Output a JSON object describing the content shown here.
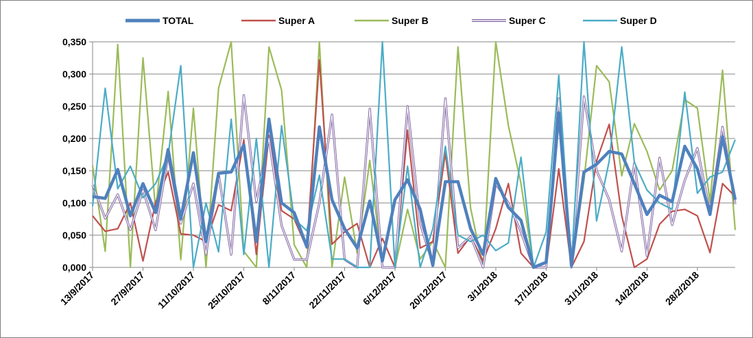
{
  "chart_data": {
    "type": "line",
    "title": "",
    "xlabel": "",
    "ylabel": "",
    "ylim": [
      0,
      0.35
    ],
    "y_ticks": [
      "0,000",
      "0,050",
      "0,100",
      "0,150",
      "0,200",
      "0,250",
      "0,300",
      "0,350"
    ],
    "x_ticks": [
      "13/9/2017",
      "27/9/2017",
      "11/10/2017",
      "25/10/2017",
      "8/11/2017",
      "22/11/2017",
      "6/12/2017",
      "20/12/2017",
      "3/1/2018",
      "17/1/2018",
      "31/1/2018",
      "14/2/2018",
      "28/2/2018"
    ],
    "grid": "horizontal",
    "legend_position": "top",
    "series": [
      {
        "name": "TOTAL",
        "color": "#4f81bd",
        "style": "thick",
        "values": [
          0.11,
          0.107,
          0.152,
          0.08,
          0.13,
          0.085,
          0.183,
          0.075,
          0.178,
          0.04,
          0.146,
          0.148,
          0.19,
          0.04,
          0.23,
          0.1,
          0.085,
          0.032,
          0.218,
          0.105,
          0.06,
          0.03,
          0.103,
          0.01,
          0.105,
          0.136,
          0.09,
          0.003,
          0.133,
          0.133,
          0.06,
          0.02,
          0.138,
          0.093,
          0.073,
          0.0,
          0.008,
          0.24,
          0.003,
          0.148,
          0.16,
          0.18,
          0.176,
          0.13,
          0.082,
          0.112,
          0.102,
          0.188,
          0.153,
          0.082,
          0.203,
          0.105
        ]
      },
      {
        "name": "Super A",
        "color": "#c0504d",
        "style": "normal",
        "values": [
          0.08,
          0.056,
          0.06,
          0.1,
          0.01,
          0.101,
          0.148,
          0.052,
          0.05,
          0.04,
          0.097,
          0.088,
          0.198,
          0.02,
          0.205,
          0.088,
          0.075,
          0.03,
          0.322,
          0.036,
          0.055,
          0.068,
          0.0,
          0.045,
          0.0,
          0.213,
          0.03,
          0.04,
          0.178,
          0.022,
          0.048,
          0.01,
          0.06,
          0.13,
          0.022,
          0.0,
          0.0,
          0.153,
          0.0,
          0.04,
          0.165,
          0.222,
          0.08,
          0.0,
          0.013,
          0.067,
          0.087,
          0.09,
          0.08,
          0.023,
          0.13,
          0.11
        ]
      },
      {
        "name": "Super B",
        "color": "#9bbb59",
        "style": "normal",
        "values": [
          0.158,
          0.025,
          0.346,
          0.0,
          0.325,
          0.088,
          0.273,
          0.012,
          0.247,
          0.0,
          0.278,
          0.35,
          0.025,
          0.0,
          0.342,
          0.275,
          0.035,
          0.0,
          0.35,
          0.0,
          0.14,
          0.022,
          0.166,
          0.0,
          0.0,
          0.09,
          0.013,
          0.04,
          0.0,
          0.342,
          0.092,
          0.0,
          0.35,
          0.22,
          0.13,
          0.0,
          0.0,
          0.235,
          0.0,
          0.135,
          0.313,
          0.288,
          0.142,
          0.223,
          0.18,
          0.12,
          0.15,
          0.26,
          0.247,
          0.102,
          0.306,
          0.058
        ]
      },
      {
        "name": "Super C",
        "color": "#8064a2",
        "style": "double",
        "values": [
          0.128,
          0.076,
          0.113,
          0.058,
          0.12,
          0.058,
          0.174,
          0.068,
          0.13,
          0.02,
          0.145,
          0.02,
          0.267,
          0.102,
          0.2,
          0.065,
          0.012,
          0.012,
          0.1,
          0.237,
          0.012,
          0.0,
          0.246,
          0.0,
          0.0,
          0.25,
          0.068,
          0.005,
          0.262,
          0.03,
          0.048,
          0.0,
          0.13,
          0.1,
          0.055,
          0.0,
          0.0,
          0.262,
          0.0,
          0.265,
          0.15,
          0.105,
          0.025,
          0.162,
          0.018,
          0.17,
          0.066,
          0.135,
          0.185,
          0.085,
          0.218,
          0.098
        ]
      },
      {
        "name": "Super D",
        "color": "#4bacc6",
        "style": "normal",
        "values": [
          0.095,
          0.278,
          0.122,
          0.157,
          0.108,
          0.13,
          0.175,
          0.313,
          0.0,
          0.1,
          0.024,
          0.23,
          0.02,
          0.2,
          0.0,
          0.22,
          0.075,
          0.057,
          0.143,
          0.013,
          0.013,
          0.0,
          0.0,
          0.35,
          0.0,
          0.157,
          0.0,
          0.06,
          0.188,
          0.05,
          0.04,
          0.05,
          0.026,
          0.038,
          0.171,
          0.0,
          0.055,
          0.298,
          0.0,
          0.35,
          0.072,
          0.165,
          0.342,
          0.163,
          0.12,
          0.1,
          0.09,
          0.272,
          0.115,
          0.14,
          0.148,
          0.198
        ]
      }
    ]
  }
}
